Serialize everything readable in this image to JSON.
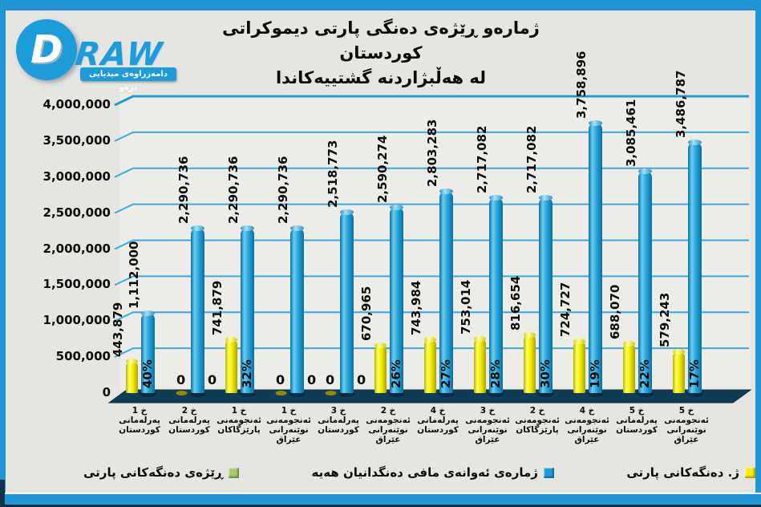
{
  "frame": {
    "accent_color": "#2097D4",
    "bottom_dark_color": "#0C2B43"
  },
  "logo": {
    "brand_d": "D",
    "brand_rest": "RAW",
    "tagline": "دامەزراوەی میدیایی درەو",
    "color": "#1E9CD9"
  },
  "title": {
    "line1": "ژمارەو ڕێژەی دەنگی پارتی دیموکراتی کوردستان",
    "line2": "لە هەڵبژاردنە گشتییەکاندا"
  },
  "y_axis": {
    "min": 0,
    "max": 4000000,
    "step": 500000,
    "tick_labels_top_to_bottom": [
      "4,000,000",
      "3,500,000",
      "3,000,000",
      "2,500,000",
      "2,000,000",
      "1,500,000",
      "1,000,000",
      "500,000",
      "0"
    ]
  },
  "chart_data": {
    "type": "bar",
    "direction": "rtl",
    "title": "ژمارەو ڕێژەی دەنگی پارتی دیموکراتی کوردستان لە هەڵبژاردنە گشتییەکاندا",
    "ylim": [
      0,
      4000000
    ],
    "grid": true,
    "legend_position": "bottom",
    "categories": [
      [
        "خ 1",
        "پەرلەمانی",
        "کوردستان"
      ],
      [
        "خ 2",
        "پەرلەمانی",
        "کوردستان"
      ],
      [
        "خ 1",
        "ئەنجومەنی",
        "پارێزگاکان"
      ],
      [
        "خ 1",
        "ئەنجومەنی",
        "نوێنەرانی",
        "عێراق"
      ],
      [
        "خ 3",
        "پەرلەمانی",
        "کوردستان"
      ],
      [
        "خ 2",
        "ئەنجومەنی",
        "نوێنەرانی",
        "عێراق"
      ],
      [
        "خ 4",
        "پەرلەمانی",
        "کوردستان"
      ],
      [
        "خ 3",
        "ئەنجومەنی",
        "نوێنەرانی",
        "عێراق"
      ],
      [
        "خ 2",
        "ئەنجومەنی",
        "پارێزگاکان"
      ],
      [
        "خ 4",
        "ئەنجومەنی",
        "نوێنەرانی",
        "عێراق"
      ],
      [
        "خ 5",
        "پەرلەمانی",
        "کوردستان"
      ],
      [
        "خ 5",
        "ئەنجومەنی",
        "نوێنەرانی",
        "عێراق"
      ]
    ],
    "series": [
      {
        "name": "ژ. دەنگەکانی پارتی",
        "color": "#F7EF00",
        "values": [
          443879,
          0,
          741879,
          0,
          0,
          670965,
          743984,
          753014,
          816654,
          724727,
          688070,
          579243
        ],
        "labels": [
          "443,879",
          "0",
          "741,879",
          "0",
          "0",
          "670,965",
          "743,984",
          "753,014",
          "816,654",
          "724,727",
          "688,070",
          "579,243"
        ]
      },
      {
        "name": "ژمارەی ئەوانەی مافی دەنگدانیان هەیە",
        "color": "#1B9CD8",
        "values": [
          1112000,
          2290736,
          2290736,
          2290736,
          2518773,
          2590274,
          2803283,
          2717082,
          2717082,
          3758896,
          3085461,
          3486787
        ],
        "labels": [
          "1,112,000",
          "2,290,736",
          "2,290,736",
          "2,290,736",
          "2,518,773",
          "2,590,274",
          "2,803,283",
          "2,717,082",
          "2,717,082",
          "3,758,896",
          "3,085,461",
          "3,486,787"
        ]
      },
      {
        "name": "ڕێژەی دەنگەکانی پارتی",
        "color": "#A5CB72",
        "unit": "percent",
        "values": [
          40,
          0,
          32,
          0,
          0,
          26,
          27,
          28,
          30,
          19,
          22,
          17
        ],
        "labels": [
          "40%",
          "0",
          "32%",
          "0",
          "0",
          "26%",
          "27%",
          "28%",
          "30%",
          "19%",
          "22%",
          "17%"
        ]
      }
    ]
  },
  "legend": {
    "items_left_to_right": [
      {
        "label": "ڕێژەی دەنگەکانی پارتی",
        "color": "#A5CB72"
      },
      {
        "label": "ژمارەی ئەوانەی مافی دەنگدانیان هەیە",
        "color": "#1B9CD8"
      },
      {
        "label": "ژ. دەنگەکانی پارتی",
        "color": "#F7EF00"
      }
    ]
  }
}
